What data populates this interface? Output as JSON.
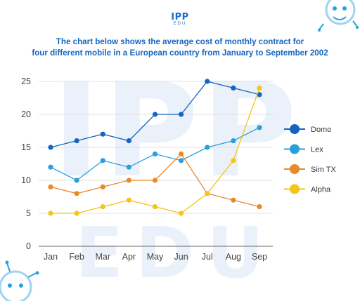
{
  "brand": {
    "logo_main": "IPP",
    "logo_sub": "EDU"
  },
  "colors": {
    "title": "#1565c0",
    "grid": "#d9d9d9",
    "axis": "#666666",
    "watermark": "#eaf1fa"
  },
  "chart_data": {
    "type": "line",
    "title_line1": "The chart below shows the average cost of monthly contract for",
    "title_line2": "four different mobile in a European country from January to September 2002",
    "categories": [
      "Jan",
      "Feb",
      "Mar",
      "Apr",
      "May",
      "Jun",
      "Jul",
      "Aug",
      "Sep"
    ],
    "ylim": [
      0,
      25
    ],
    "yticks": [
      0,
      5,
      10,
      15,
      20,
      25
    ],
    "grid": true,
    "legend_position": "right",
    "series": [
      {
        "name": "Domo",
        "color": "#1565c0",
        "values": [
          15,
          16,
          17,
          16,
          20,
          20,
          25,
          24,
          23
        ]
      },
      {
        "name": "Lex",
        "color": "#29a0dc",
        "values": [
          12,
          10,
          13,
          12,
          14,
          13,
          15,
          16,
          18
        ]
      },
      {
        "name": "Sim TX",
        "color": "#e8892a",
        "values": [
          9,
          8,
          9,
          10,
          10,
          14,
          8,
          7,
          6
        ]
      },
      {
        "name": "Alpha",
        "color": "#f5c518",
        "values": [
          5,
          5,
          6,
          7,
          6,
          5,
          8,
          13,
          24
        ]
      }
    ]
  }
}
